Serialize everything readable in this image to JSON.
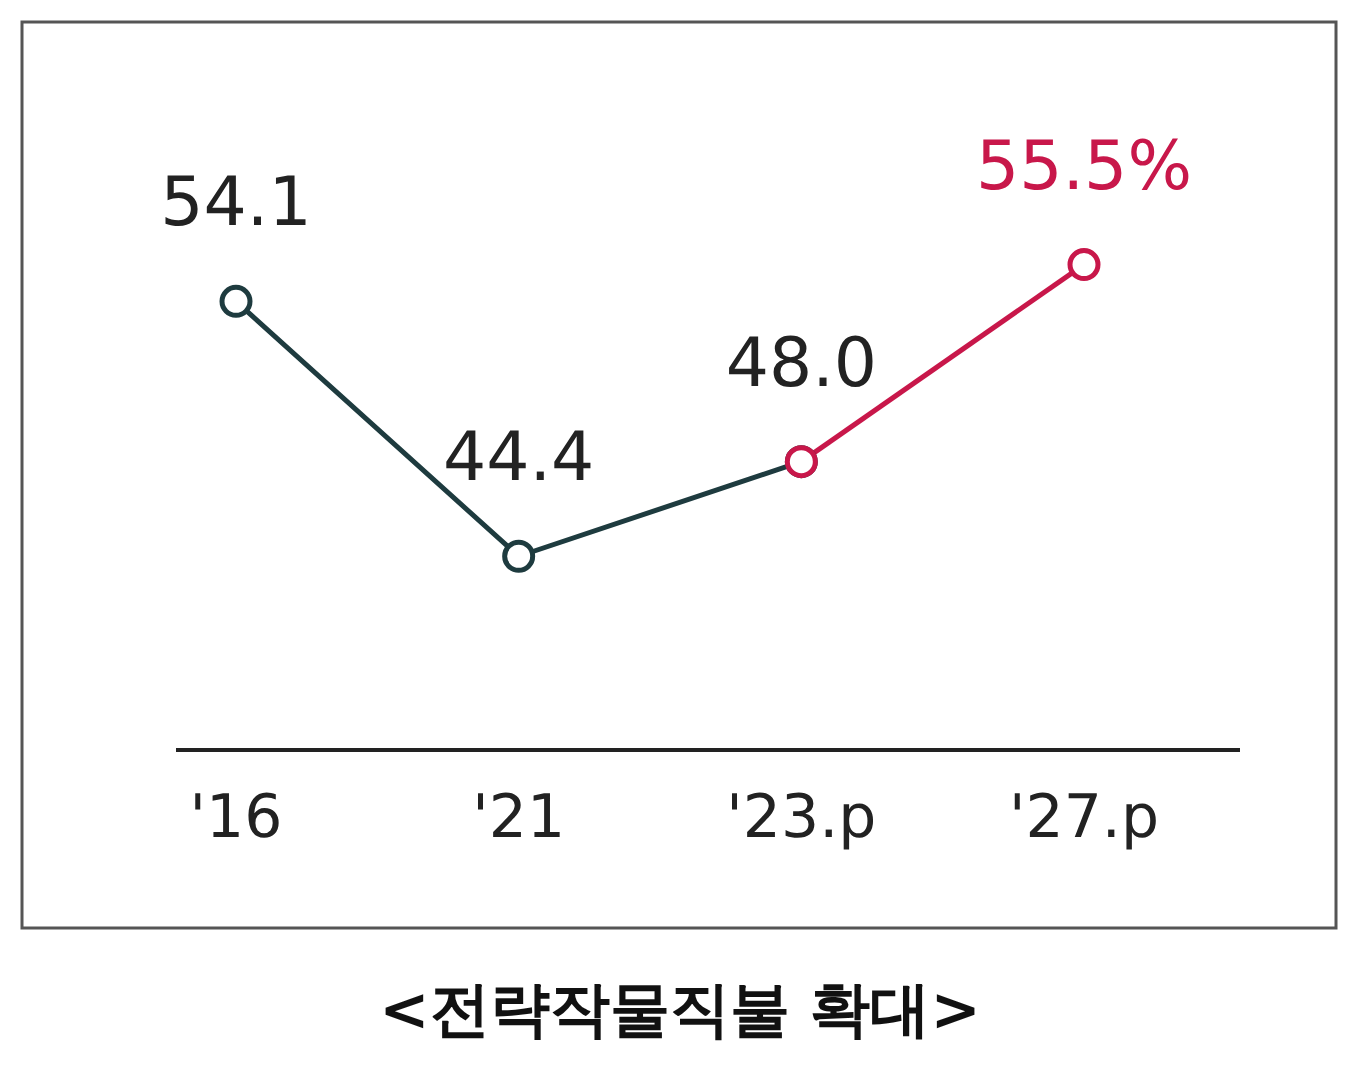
{
  "chart_data": {
    "type": "line",
    "title": "<전략작물직불 확대>",
    "categories": [
      "'16",
      "'21",
      "'23.p",
      "'27.p"
    ],
    "marker": "circle",
    "series": [
      {
        "color": "#1e3b3f",
        "values": [
          54.1,
          44.4,
          48.0,
          null
        ],
        "value_labels": [
          "54.1",
          "44.4",
          "48.0",
          null
        ]
      },
      {
        "color": "#c8174a",
        "values": [
          null,
          null,
          48.0,
          55.5
        ],
        "value_labels": [
          null,
          null,
          null,
          "55.5%"
        ]
      }
    ]
  }
}
